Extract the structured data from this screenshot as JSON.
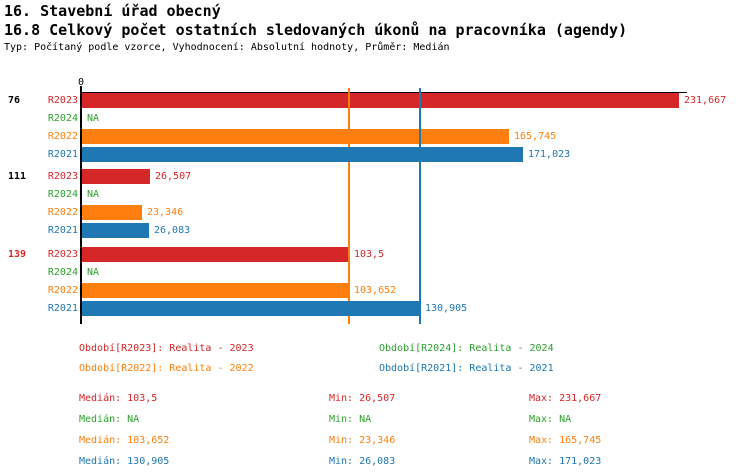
{
  "header": {
    "title_line1": "16. Stavební úřad obecný",
    "title_line2": "16.8 Celkový počet ostatních sledovaných úkonů na pracovníka (agendy)",
    "meta": "Typ: Počítaný podle vzorce, Vyhodnocení: Absolutní hodnoty, Průměr: Medián"
  },
  "colors": {
    "red": "#d62728",
    "green": "#2ca02c",
    "orange": "#ff7f0e",
    "blue": "#1f77b4",
    "black": "#000000"
  },
  "chart_data": {
    "type": "bar",
    "orientation": "horizontal",
    "x_axis": {
      "origin_tick_label": "0",
      "xlim": [
        0,
        235
      ]
    },
    "series": [
      {
        "id": "R2023",
        "name": "Realita - 2023",
        "color_key": "red"
      },
      {
        "id": "R2024",
        "name": "Realita - 2024",
        "color_key": "green"
      },
      {
        "id": "R2022",
        "name": "Realita - 2022",
        "color_key": "orange"
      },
      {
        "id": "R2021",
        "name": "Realita - 2021",
        "color_key": "blue"
      }
    ],
    "groups": [
      {
        "label": "76",
        "label_color_key": "black",
        "values": [
          231.667,
          null,
          165.745,
          171.023
        ],
        "display": [
          "231,667",
          "NA",
          "165,745",
          "171,023"
        ]
      },
      {
        "label": "111",
        "label_color_key": "black",
        "values": [
          26.507,
          null,
          23.346,
          26.083
        ],
        "display": [
          "26,507",
          "NA",
          "23,346",
          "26,083"
        ]
      },
      {
        "label": "139",
        "label_color_key": "red",
        "values": [
          103.5,
          null,
          103.652,
          130.905
        ],
        "display": [
          "103,5",
          "NA",
          "103,652",
          "130,905"
        ]
      }
    ],
    "median_lines": [
      {
        "series": "R2022",
        "value": 103.652,
        "color_key": "orange"
      },
      {
        "series": "R2021",
        "value": 130.905,
        "color_key": "blue"
      }
    ]
  },
  "legend": {
    "items": [
      {
        "series": "R2023",
        "text": "Období[R2023]: Realita - 2023",
        "color_key": "red"
      },
      {
        "series": "R2024",
        "text": "Období[R2024]: Realita - 2024",
        "color_key": "green"
      },
      {
        "series": "R2022",
        "text": "Období[R2022]: Realita - 2022",
        "color_key": "orange"
      },
      {
        "series": "R2021",
        "text": "Období[R2021]: Realita - 2021",
        "color_key": "blue"
      }
    ]
  },
  "stats": {
    "labels": {
      "median": "Medián",
      "min": "Min",
      "max": "Max"
    },
    "rows": [
      {
        "series": "R2023",
        "color_key": "red",
        "median": "103,5",
        "min": "26,507",
        "max": "231,667"
      },
      {
        "series": "R2024",
        "color_key": "green",
        "median": "NA",
        "min": "NA",
        "max": "NA"
      },
      {
        "series": "R2022",
        "color_key": "orange",
        "median": "103,652",
        "min": "23,346",
        "max": "165,745"
      },
      {
        "series": "R2021",
        "color_key": "blue",
        "median": "130,905",
        "min": "26,083",
        "max": "171,023"
      }
    ]
  }
}
